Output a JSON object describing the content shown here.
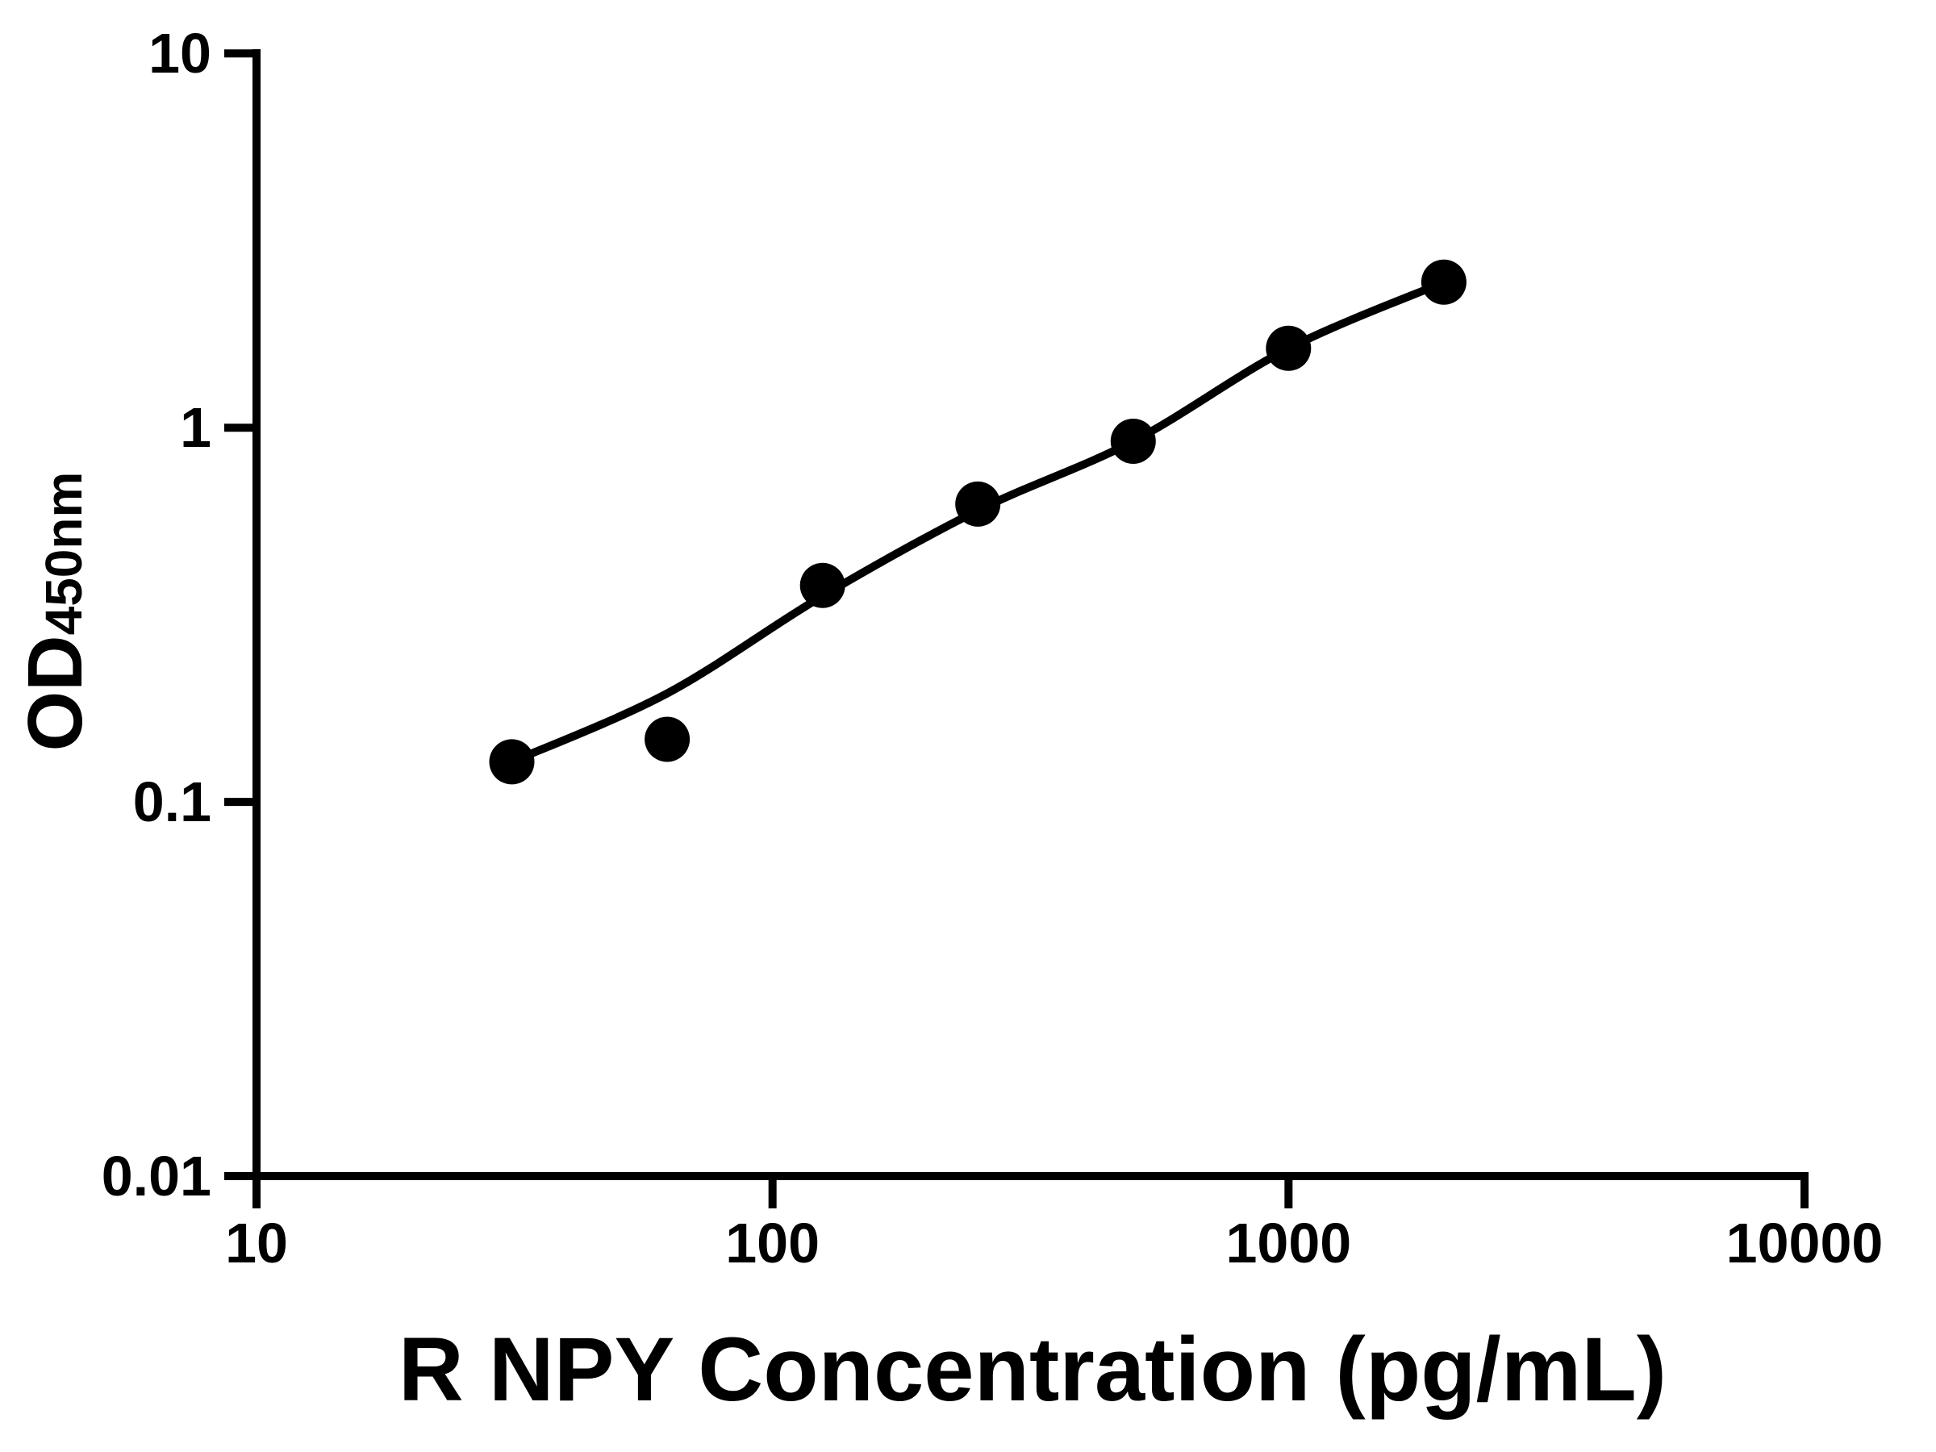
{
  "figure": {
    "background": "#ffffff",
    "ink": "#000000"
  },
  "chart_data": {
    "type": "scatter",
    "title": "",
    "xlabel": "R NPY Concentration (pg/mL)",
    "ylabel_main": "OD",
    "ylabel_sub": "450nm",
    "x_scale": "log10",
    "y_scale": "log10",
    "xlim": [
      10,
      10000
    ],
    "ylim": [
      0.01,
      10
    ],
    "grid": false,
    "legend": "none",
    "x_ticks": [
      {
        "value": 10,
        "label": "10"
      },
      {
        "value": 100,
        "label": "100"
      },
      {
        "value": 1000,
        "label": "1000"
      },
      {
        "value": 10000,
        "label": "10000"
      }
    ],
    "y_ticks": [
      {
        "value": 10,
        "label": "10"
      },
      {
        "value": 1,
        "label": "1"
      },
      {
        "value": 0.1,
        "label": "0.1"
      },
      {
        "value": 0.01,
        "label": "0.01"
      }
    ],
    "series": [
      {
        "name": "standard-points",
        "type": "scatter",
        "marker": "filled-circle",
        "color": "#000000",
        "x": [
          31.25,
          62.5,
          125,
          250,
          500,
          1000,
          2000
        ],
        "y": [
          0.128,
          0.147,
          0.379,
          0.625,
          0.92,
          1.63,
          2.45
        ]
      },
      {
        "name": "fitted-curve",
        "type": "line",
        "color": "#000000",
        "x": [
          31.25,
          62.5,
          125,
          250,
          500,
          1000,
          2000
        ],
        "y": [
          0.128,
          0.195,
          0.355,
          0.601,
          0.92,
          1.628,
          2.446
        ]
      }
    ]
  }
}
